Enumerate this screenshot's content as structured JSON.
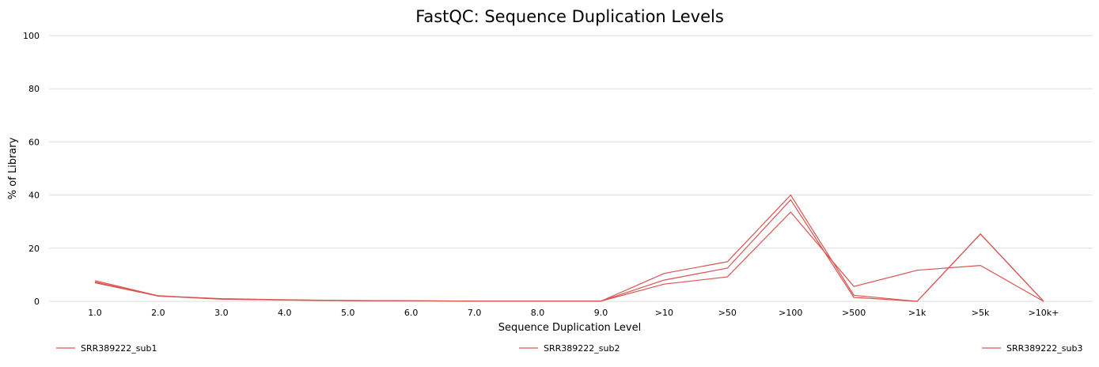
{
  "chart_data": {
    "type": "line",
    "title": "FastQC: Sequence Duplication Levels",
    "xlabel": "Sequence Duplication Level",
    "ylabel": "% of Library",
    "categories": [
      "1.0",
      "2.0",
      "3.0",
      "4.0",
      "5.0",
      "6.0",
      "7.0",
      "8.0",
      "9.0",
      ">10",
      ">50",
      ">100",
      ">500",
      ">1k",
      ">5k",
      ">10k+"
    ],
    "ylim": [
      0,
      100
    ],
    "yticks": [
      "0",
      "20",
      "40",
      "60",
      "80",
      "100"
    ],
    "grid": true,
    "legend_position": "bottom",
    "series": [
      {
        "name": "SRR389222_sub1",
        "color": "#d9534f",
        "values": [
          7.0,
          2.0,
          1.0,
          0.6,
          0.3,
          0.2,
          0.1,
          0.1,
          0.1,
          8.0,
          12.5,
          38.2,
          1.5,
          0,
          25.3,
          0
        ]
      },
      {
        "name": "SRR389222_sub2",
        "color": "#d9534f",
        "values": [
          7.8,
          2.1,
          0.9,
          0.5,
          0.3,
          0.2,
          0.1,
          0.1,
          0.1,
          10.5,
          14.9,
          40.0,
          2.3,
          0,
          25.4,
          0
        ]
      },
      {
        "name": "SRR389222_sub3",
        "color": "#d9534f",
        "values": [
          7.3,
          2.0,
          0.8,
          0.5,
          0.3,
          0.2,
          0.1,
          0.1,
          0.1,
          6.5,
          9.2,
          33.6,
          5.6,
          11.7,
          13.5,
          0
        ]
      }
    ]
  }
}
